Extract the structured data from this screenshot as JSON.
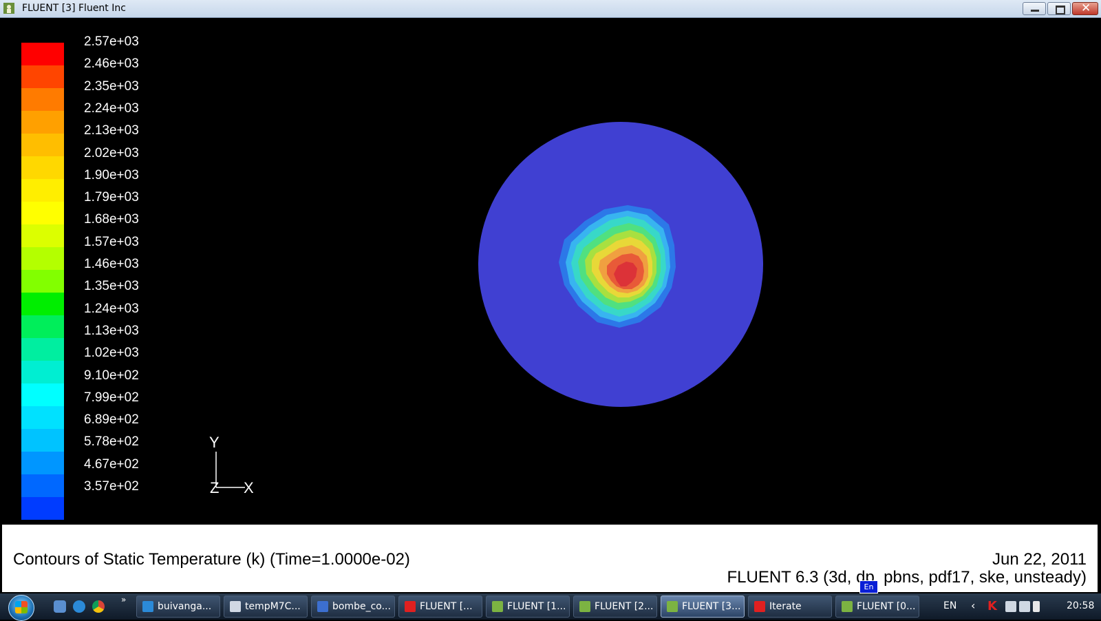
{
  "window": {
    "title": "FLUENT [3] Fluent Inc",
    "close_glyph": "✕"
  },
  "legend": {
    "colors": [
      "#ff0000",
      "#ff4500",
      "#ff7b00",
      "#ffa000",
      "#ffbe00",
      "#ffd800",
      "#ffee00",
      "#ffff00",
      "#dcff00",
      "#b4ff00",
      "#82ff00",
      "#00ee00",
      "#00ee5a",
      "#00eea0",
      "#00eed2",
      "#00ffff",
      "#00e1ff",
      "#00c3ff",
      "#0096ff",
      "#0068ff",
      "#003cff"
    ],
    "ticks": [
      "2.57e+03",
      "2.46e+03",
      "2.35e+03",
      "2.24e+03",
      "2.13e+03",
      "2.02e+03",
      "1.90e+03",
      "1.79e+03",
      "1.68e+03",
      "1.57e+03",
      "1.46e+03",
      "1.35e+03",
      "1.24e+03",
      "1.13e+03",
      "1.02e+03",
      "9.10e+02",
      "7.99e+02",
      "6.89e+02",
      "5.78e+02",
      "4.67e+02",
      "3.57e+02"
    ]
  },
  "axes": {
    "y": "Y",
    "z": "Z",
    "x": "X"
  },
  "caption": {
    "title": "Contours of Static Temperature (k)  (Time=1.0000e-02)",
    "date": "Jun 22, 2011",
    "solver": "FLUENT 6.3 (3d, dp, pbns, pdf17, ske, unsteady)"
  },
  "ime": "En",
  "taskbar": {
    "more": "»",
    "tasks": [
      {
        "label": "buivanga...",
        "color": "#2b8ad8"
      },
      {
        "label": "tempM7C...",
        "color": "#d0d8e4"
      },
      {
        "label": "bombe_co...",
        "color": "#3c6fd0"
      },
      {
        "label": "FLUENT  [...",
        "color": "#e02020"
      },
      {
        "label": "FLUENT [1...",
        "color": "#7cb342"
      },
      {
        "label": "FLUENT [2...",
        "color": "#7cb342"
      },
      {
        "label": "FLUENT [3...",
        "color": "#7cb342",
        "active": true
      },
      {
        "label": "Iterate",
        "color": "#e02020"
      },
      {
        "label": "FLUENT [0...",
        "color": "#7cb342"
      }
    ],
    "tray": {
      "lang": "EN",
      "arrow": "‹",
      "k": "K",
      "clock": "20:58"
    }
  }
}
